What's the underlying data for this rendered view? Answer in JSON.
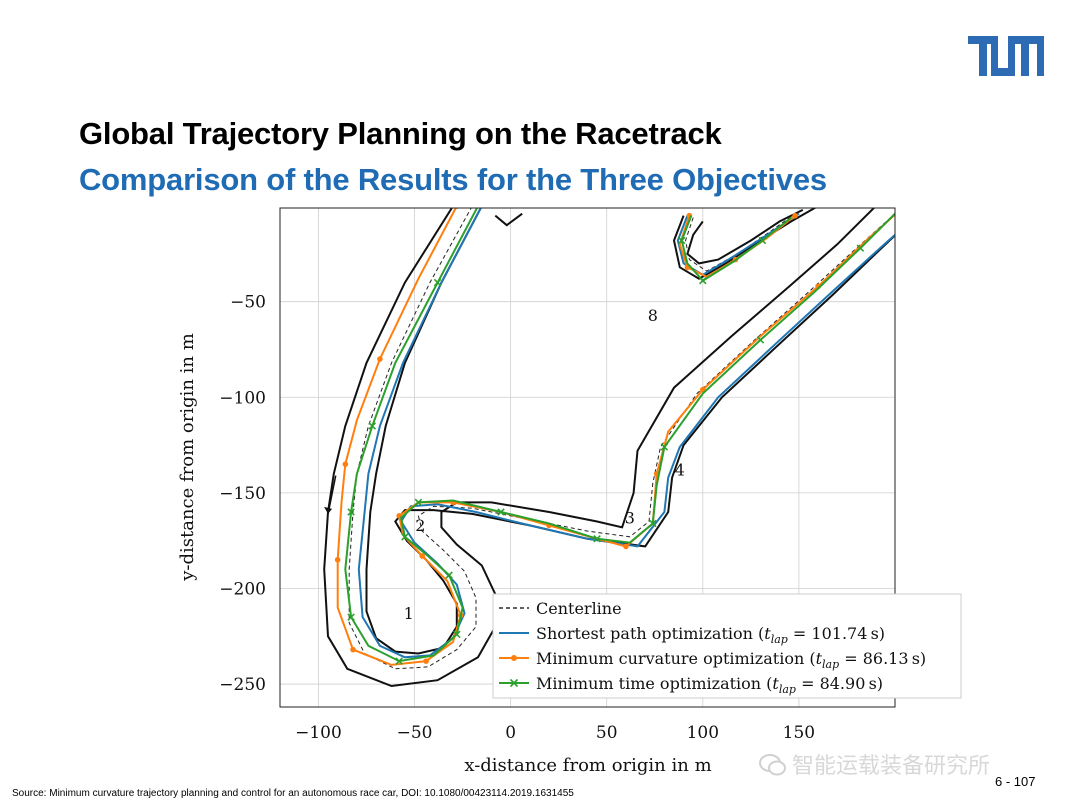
{
  "header": {
    "title": "Global Trajectory Planning on the Racetrack",
    "subtitle": "Comparison of the Results for the Three Objectives",
    "subtitle_color": "#1f6cb5",
    "logo_text": "TUM",
    "logo_color": "#2d6cb4"
  },
  "chart_data": {
    "type": "line",
    "xlabel": "x-distance from origin in m",
    "ylabel": "y-distance from origin in m",
    "xlim": [
      -120,
      200
    ],
    "ylim": [
      -262,
      -1
    ],
    "xticks": [
      -100,
      -50,
      0,
      50,
      100,
      150
    ],
    "xtick_labels": [
      "−100",
      "−50",
      "0",
      "50",
      "100",
      "150"
    ],
    "yticks": [
      -50,
      -100,
      -150,
      -200,
      -250
    ],
    "ytick_labels": [
      "−50",
      "−100",
      "−150",
      "−200",
      "−250"
    ],
    "grid": true,
    "legend_position": "bottom-right",
    "corner_labels": [
      {
        "text": "1",
        "x": -53,
        "y": -216
      },
      {
        "text": "2",
        "x": -47,
        "y": -170
      },
      {
        "text": "3",
        "x": 62,
        "y": -166
      },
      {
        "text": "4",
        "x": 88,
        "y": -141
      },
      {
        "text": "8",
        "x": 74,
        "y": -60
      }
    ],
    "direction_arrow": {
      "from": [
        -91,
        -141
      ],
      "to": [
        -95,
        -161
      ]
    },
    "track_boundaries": [
      [
        [
          -15,
          0
        ],
        [
          -36,
          -40
        ],
        [
          -55,
          -82
        ],
        [
          -65,
          -115
        ],
        [
          -70,
          -140
        ],
        [
          -73,
          -160
        ],
        [
          -75,
          -190
        ],
        [
          -75,
          -212
        ],
        [
          -70,
          -226
        ],
        [
          -60,
          -233
        ],
        [
          -48,
          -234
        ],
        [
          -35,
          -231
        ],
        [
          -28,
          -220
        ],
        [
          -28,
          -208
        ],
        [
          -35,
          -196
        ],
        [
          -44,
          -185
        ],
        [
          -54,
          -175
        ],
        [
          -60,
          -165
        ],
        [
          -55,
          -159
        ],
        [
          -40,
          -159
        ],
        [
          -20,
          -161
        ],
        [
          10,
          -167
        ],
        [
          40,
          -174
        ],
        [
          70,
          -178
        ],
        [
          82,
          -160
        ],
        [
          84,
          -142
        ],
        [
          90,
          -125
        ],
        [
          110,
          -100
        ],
        [
          140,
          -72
        ],
        [
          167,
          -47
        ],
        [
          193,
          -22
        ],
        [
          212,
          -4
        ]
      ],
      [
        [
          -30,
          0
        ],
        [
          -55,
          -40
        ],
        [
          -75,
          -82
        ],
        [
          -86,
          -115
        ],
        [
          -92,
          -140
        ],
        [
          -95,
          -160
        ],
        [
          -97,
          -190
        ],
        [
          -95,
          -225
        ],
        [
          -85,
          -242
        ],
        [
          -62,
          -251
        ],
        [
          -38,
          -248
        ],
        [
          -17,
          -236
        ],
        [
          -8,
          -220
        ],
        [
          -8,
          -203
        ],
        [
          -15,
          -188
        ],
        [
          -28,
          -177
        ],
        [
          -36,
          -168
        ],
        [
          -36,
          -160
        ],
        [
          -28,
          -155
        ],
        [
          -10,
          -155
        ],
        [
          20,
          -160
        ],
        [
          45,
          -165
        ],
        [
          58,
          -168
        ],
        [
          64,
          -150
        ],
        [
          66,
          -128
        ],
        [
          85,
          -95
        ],
        [
          115,
          -68
        ],
        [
          145,
          -42
        ],
        [
          170,
          -20
        ],
        [
          190,
          0
        ]
      ],
      [
        [
          -8,
          -5
        ],
        [
          -2,
          -10
        ],
        [
          6,
          -4
        ]
      ],
      [
        [
          90,
          -5
        ],
        [
          85,
          -18
        ],
        [
          88,
          -32
        ],
        [
          98,
          -38
        ],
        [
          112,
          -30
        ],
        [
          130,
          -18
        ],
        [
          146,
          -8
        ],
        [
          160,
          0
        ]
      ],
      [
        [
          100,
          -8
        ],
        [
          95,
          -15
        ],
        [
          92,
          -25
        ],
        [
          98,
          -30
        ],
        [
          108,
          -28
        ],
        [
          125,
          -18
        ],
        [
          140,
          -8
        ],
        [
          152,
          -2
        ]
      ]
    ],
    "centerline": [
      [
        -20,
        0
      ],
      [
        -42,
        -40
      ],
      [
        -62,
        -82
      ],
      [
        -74,
        -115
      ],
      [
        -80,
        -140
      ],
      [
        -82,
        -160
      ],
      [
        -84,
        -190
      ],
      [
        -84,
        -218
      ],
      [
        -76,
        -234
      ],
      [
        -60,
        -242
      ],
      [
        -43,
        -241
      ],
      [
        -28,
        -232
      ],
      [
        -18,
        -220
      ],
      [
        -18,
        -205
      ],
      [
        -24,
        -191
      ],
      [
        -35,
        -180
      ],
      [
        -46,
        -170
      ],
      [
        -48,
        -162
      ],
      [
        -40,
        -157
      ],
      [
        -20,
        -158
      ],
      [
        10,
        -164
      ],
      [
        40,
        -170
      ],
      [
        62,
        -173
      ],
      [
        72,
        -165
      ],
      [
        74,
        -145
      ],
      [
        78,
        -126
      ],
      [
        97,
        -98
      ],
      [
        127,
        -70
      ],
      [
        155,
        -45
      ],
      [
        180,
        -22
      ],
      [
        200,
        -4
      ]
    ],
    "centerline_2": [
      [
        95,
        -6
      ],
      [
        91,
        -18
      ],
      [
        93,
        -28
      ],
      [
        102,
        -34
      ],
      [
        118,
        -25
      ],
      [
        134,
        -14
      ],
      [
        148,
        -4
      ]
    ],
    "series": [
      {
        "name": "Shortest path optimization (t_lap = 101.74 s)",
        "label_main": "Shortest path optimization (",
        "label_t": "t",
        "label_sub": "lap",
        "label_value": " = 101.74 s)",
        "color": "#1f77b4",
        "marker": "none",
        "points": [
          [
            -15,
            0
          ],
          [
            -36,
            -40
          ],
          [
            -56,
            -82
          ],
          [
            -68,
            -115
          ],
          [
            -74,
            -140
          ],
          [
            -76,
            -160
          ],
          [
            -79,
            -190
          ],
          [
            -77,
            -215
          ],
          [
            -68,
            -230
          ],
          [
            -55,
            -236
          ],
          [
            -42,
            -235
          ],
          [
            -30,
            -226
          ],
          [
            -24,
            -213
          ],
          [
            -28,
            -198
          ],
          [
            -38,
            -187
          ],
          [
            -50,
            -176
          ],
          [
            -57,
            -165
          ],
          [
            -52,
            -157
          ],
          [
            -38,
            -156
          ],
          [
            -18,
            -160
          ],
          [
            10,
            -167
          ],
          [
            40,
            -174
          ],
          [
            66,
            -178
          ],
          [
            80,
            -160
          ],
          [
            82,
            -142
          ],
          [
            88,
            -126
          ],
          [
            108,
            -100
          ],
          [
            138,
            -72
          ],
          [
            165,
            -47
          ],
          [
            190,
            -24
          ],
          [
            210,
            -6
          ]
        ],
        "points_2": [
          [
            92,
            -5
          ],
          [
            87,
            -18
          ],
          [
            90,
            -30
          ],
          [
            100,
            -36
          ],
          [
            115,
            -27
          ],
          [
            132,
            -16
          ],
          [
            150,
            -4
          ]
        ]
      },
      {
        "name": "Minimum curvature optimization (t_lap = 86.13 s)",
        "label_main": "Minimum curvature optimization (",
        "label_t": "t",
        "label_sub": "lap",
        "label_value": " = 86.13 s)",
        "color": "#ff7f0e",
        "marker": "dot",
        "points": [
          [
            -28,
            0
          ],
          [
            -48,
            -38
          ],
          [
            -68,
            -80
          ],
          [
            -80,
            -112
          ],
          [
            -86,
            -135
          ],
          [
            -88,
            -155
          ],
          [
            -90,
            -185
          ],
          [
            -90,
            -210
          ],
          [
            -82,
            -232
          ],
          [
            -62,
            -240
          ],
          [
            -44,
            -238
          ],
          [
            -30,
            -228
          ],
          [
            -26,
            -214
          ],
          [
            -33,
            -196
          ],
          [
            -46,
            -183
          ],
          [
            -56,
            -172
          ],
          [
            -58,
            -162
          ],
          [
            -48,
            -155
          ],
          [
            -30,
            -155
          ],
          [
            -5,
            -160
          ],
          [
            20,
            -167
          ],
          [
            45,
            -174
          ],
          [
            60,
            -178
          ],
          [
            74,
            -166
          ],
          [
            76,
            -140
          ],
          [
            82,
            -118
          ],
          [
            100,
            -96
          ],
          [
            130,
            -68
          ],
          [
            160,
            -42
          ],
          [
            185,
            -18
          ],
          [
            205,
            0
          ]
        ],
        "points_2": [
          [
            93,
            -5
          ],
          [
            88,
            -20
          ],
          [
            92,
            -32
          ],
          [
            102,
            -37
          ],
          [
            117,
            -28
          ],
          [
            133,
            -17
          ],
          [
            148,
            -5
          ]
        ]
      },
      {
        "name": "Minimum time optimization (t_lap = 84.90 s)",
        "label_main": "Minimum time optimization (",
        "label_t": "t",
        "label_sub": "lap",
        "label_value": " = 84.90 s)",
        "color": "#2ca02c",
        "marker": "x",
        "points": [
          [
            -17,
            0
          ],
          [
            -38,
            -40
          ],
          [
            -60,
            -82
          ],
          [
            -72,
            -115
          ],
          [
            -80,
            -140
          ],
          [
            -83,
            -160
          ],
          [
            -86,
            -190
          ],
          [
            -83,
            -215
          ],
          [
            -74,
            -230
          ],
          [
            -58,
            -238
          ],
          [
            -40,
            -235
          ],
          [
            -28,
            -224
          ],
          [
            -25,
            -210
          ],
          [
            -32,
            -193
          ],
          [
            -43,
            -183
          ],
          [
            -55,
            -173
          ],
          [
            -57,
            -163
          ],
          [
            -48,
            -155
          ],
          [
            -30,
            -154
          ],
          [
            -5,
            -160
          ],
          [
            20,
            -166
          ],
          [
            45,
            -174
          ],
          [
            62,
            -176
          ],
          [
            74,
            -166
          ],
          [
            76,
            -146
          ],
          [
            80,
            -126
          ],
          [
            100,
            -98
          ],
          [
            130,
            -70
          ],
          [
            158,
            -45
          ],
          [
            182,
            -22
          ],
          [
            202,
            -2
          ]
        ],
        "points_2": [
          [
            94,
            -5
          ],
          [
            89,
            -18
          ],
          [
            92,
            -30
          ],
          [
            100,
            -39
          ],
          [
            116,
            -29
          ],
          [
            131,
            -18
          ],
          [
            146,
            -6
          ]
        ]
      },
      {
        "name": "Centerline",
        "label_main": "Centerline",
        "color": "#000000",
        "marker": "dashed"
      }
    ]
  },
  "footer": {
    "source": "Source: Minimum curvature trajectory planning and control for an autonomous race car, DOI: 10.1080/00423114.2019.1631455",
    "page_number": "6 - 107",
    "watermark": "智能运载装备研究所"
  }
}
